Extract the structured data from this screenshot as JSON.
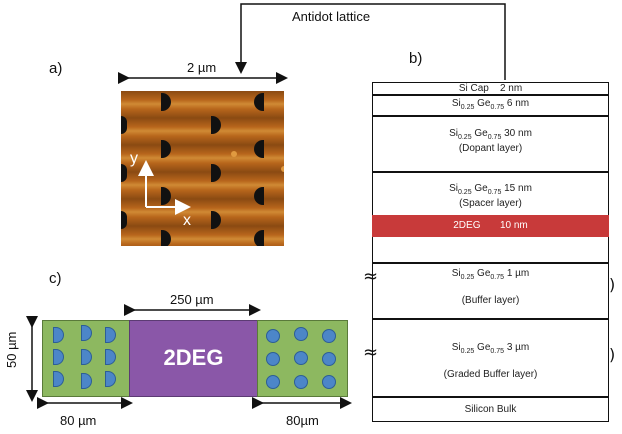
{
  "panel_a": {
    "label": "a)",
    "scale_text": "2 µm",
    "axis_y": "y",
    "axis_x": "x"
  },
  "panel_b": {
    "label": "b)",
    "connector_text": "Antidot lattice",
    "layers": [
      {
        "name": "Si Cap",
        "thickness": "2 nm"
      },
      {
        "name": "Si0.25 Ge0.75",
        "thickness": "6 nm",
        "sub_a": "0.25",
        "sub_b": "0.75"
      },
      {
        "name": "Si0.25 Ge0.75",
        "thickness": "30 nm",
        "note": "(Dopant layer)",
        "sub_a": "0.25",
        "sub_b": "0.75"
      },
      {
        "name": "Si0.25 Ge0.75",
        "thickness": "15 nm",
        "note": "(Spacer layer)",
        "sub_a": "0.25",
        "sub_b": "0.75"
      },
      {
        "name": "2DEG",
        "thickness": "10 nm"
      },
      {
        "name": "Si0.25 Ge0.75",
        "thickness": "1 µm",
        "note": "(Buffer layer)",
        "sub_a": "0.25",
        "sub_b": "0.75"
      },
      {
        "name": "Si0.25 Ge0.75",
        "thickness": "3 µm",
        "note": "(Graded Buffer layer)",
        "sub_a": "0.25",
        "sub_b": "0.75"
      },
      {
        "name": "Silicon Bulk",
        "thickness": ""
      }
    ],
    "colors": {
      "twodeg": "#c83a3a"
    }
  },
  "panel_c": {
    "label": "c)",
    "center_text": "2DEG",
    "top_dim": "250 µm",
    "left_dim": "50 µm",
    "bottom_left_dim": "80 µm",
    "bottom_right_dim": "80µm",
    "colors": {
      "green": "#8db860",
      "purple": "#8a57a8",
      "blue": "#4c86c8"
    }
  }
}
